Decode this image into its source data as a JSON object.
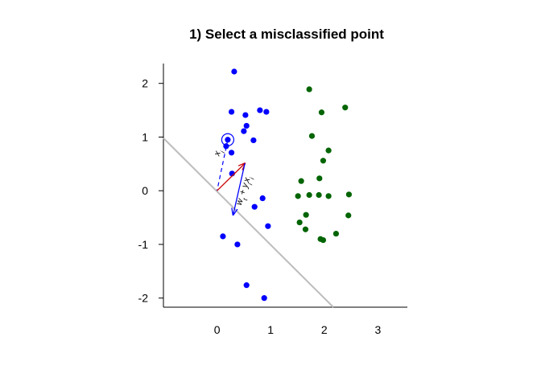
{
  "chart_data": {
    "type": "scatter",
    "title": "1) Select a misclassified point",
    "xlabel": "",
    "ylabel": "",
    "xlim": [
      -1,
      3.55
    ],
    "ylim": [
      -2.17,
      2.37
    ],
    "x_ticks": [
      0,
      1,
      2,
      3
    ],
    "y_ticks": [
      -2,
      -1,
      0,
      1,
      2
    ],
    "x_tick_labels": [
      "0",
      "1",
      "2",
      "3"
    ],
    "y_tick_labels": [
      "-2",
      "-1",
      "0",
      "1",
      "2"
    ],
    "grid": false,
    "colors": {
      "class_a": "#0000ff",
      "class_b": "#006400",
      "boundary": "#bdbdbd",
      "w_vector": "#cc0000",
      "yx_vector": "#0000ff"
    },
    "series": [
      {
        "color": "#0000ff",
        "points": [
          [
            0.32,
            2.22
          ],
          [
            0.27,
            1.47
          ],
          [
            0.8,
            1.5
          ],
          [
            0.92,
            1.47
          ],
          [
            0.53,
            1.41
          ],
          [
            0.55,
            1.21
          ],
          [
            0.5,
            1.11
          ],
          [
            0.68,
            0.94
          ],
          [
            0.2,
            0.95
          ],
          [
            0.17,
            0.83
          ],
          [
            0.27,
            0.71
          ],
          [
            0.28,
            0.32
          ],
          [
            0.85,
            -0.14
          ],
          [
            0.7,
            -0.3
          ],
          [
            0.95,
            -0.66
          ],
          [
            0.11,
            -0.85
          ],
          [
            0.38,
            -1.0
          ],
          [
            0.55,
            -1.76
          ],
          [
            0.88,
            -2.0
          ]
        ]
      },
      {
        "color": "#006400",
        "points": [
          [
            1.72,
            1.89
          ],
          [
            2.39,
            1.55
          ],
          [
            1.95,
            1.46
          ],
          [
            1.77,
            1.02
          ],
          [
            2.08,
            0.75
          ],
          [
            1.98,
            0.56
          ],
          [
            1.91,
            0.23
          ],
          [
            1.57,
            0.18
          ],
          [
            1.51,
            -0.1
          ],
          [
            1.72,
            -0.08
          ],
          [
            1.9,
            -0.08
          ],
          [
            2.08,
            -0.1
          ],
          [
            2.46,
            -0.07
          ],
          [
            1.66,
            -0.45
          ],
          [
            2.45,
            -0.46
          ],
          [
            1.54,
            -0.59
          ],
          [
            1.65,
            -0.72
          ],
          [
            2.22,
            -0.8
          ],
          [
            1.93,
            -0.9
          ],
          [
            1.98,
            -0.92
          ]
        ]
      }
    ],
    "boundary_line": {
      "from": [
        -1,
        0.98
      ],
      "to": [
        2.17,
        -2.17
      ]
    },
    "misclassified_point": [
      0.2,
      0.95
    ],
    "vectors": [
      {
        "from": [
          0,
          0
        ],
        "to": [
          0.52,
          0.51
        ],
        "color": "#cc0000"
      },
      {
        "from": [
          0.52,
          0.51
        ],
        "to": [
          0.3,
          -0.45
        ],
        "color": "#0000ff"
      }
    ],
    "dashed_segment": {
      "from": [
        0.2,
        0.95
      ],
      "to": [
        0,
        0
      ],
      "color": "#0000ff"
    },
    "annotations": [
      {
        "text": "x",
        "sub": "i",
        "at": [
          0.04,
          0.64
        ],
        "rotate": -72
      },
      {
        "text": "w",
        "sub": "t",
        "text2": " + y",
        "sub2": "i",
        "text3": "x",
        "sub3": "i",
        "at": [
          0.45,
          -0.28
        ],
        "rotate": -72
      }
    ]
  }
}
